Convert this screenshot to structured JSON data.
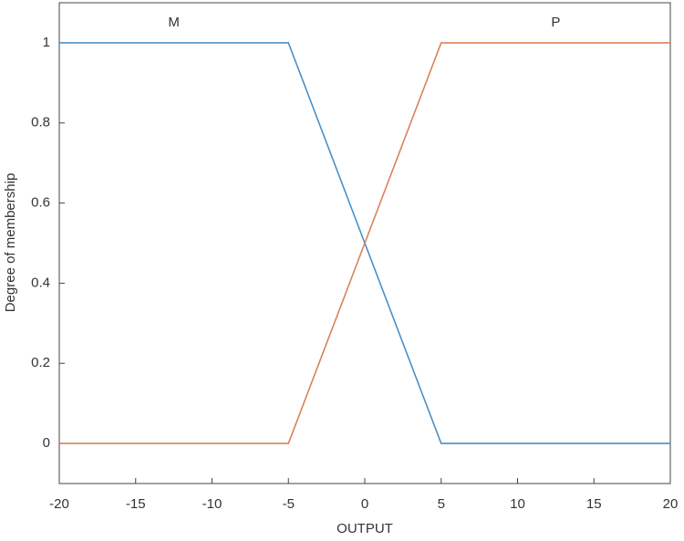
{
  "chart_data": {
    "type": "line",
    "xlabel": "OUTPUT",
    "ylabel": "Degree of membership",
    "x": [
      -20,
      -5,
      5,
      20
    ],
    "series": [
      {
        "name": "M",
        "color": "#4a90c8",
        "values": [
          1,
          1,
          0,
          0
        ]
      },
      {
        "name": "P",
        "color": "#d9825b",
        "values": [
          0,
          0,
          1,
          1
        ]
      }
    ],
    "annotations": [
      {
        "text": "M",
        "x": -12.5,
        "y": 1.05
      },
      {
        "text": "P",
        "x": 12.5,
        "y": 1.05
      }
    ],
    "xlim": [
      -20,
      20
    ],
    "xticks": [
      -20,
      -15,
      -10,
      -5,
      0,
      5,
      10,
      15,
      20
    ],
    "ylim": [
      -0.1,
      1.1
    ],
    "yticks": [
      0,
      0.2,
      0.4,
      0.6,
      0.8,
      1
    ],
    "grid": false
  }
}
